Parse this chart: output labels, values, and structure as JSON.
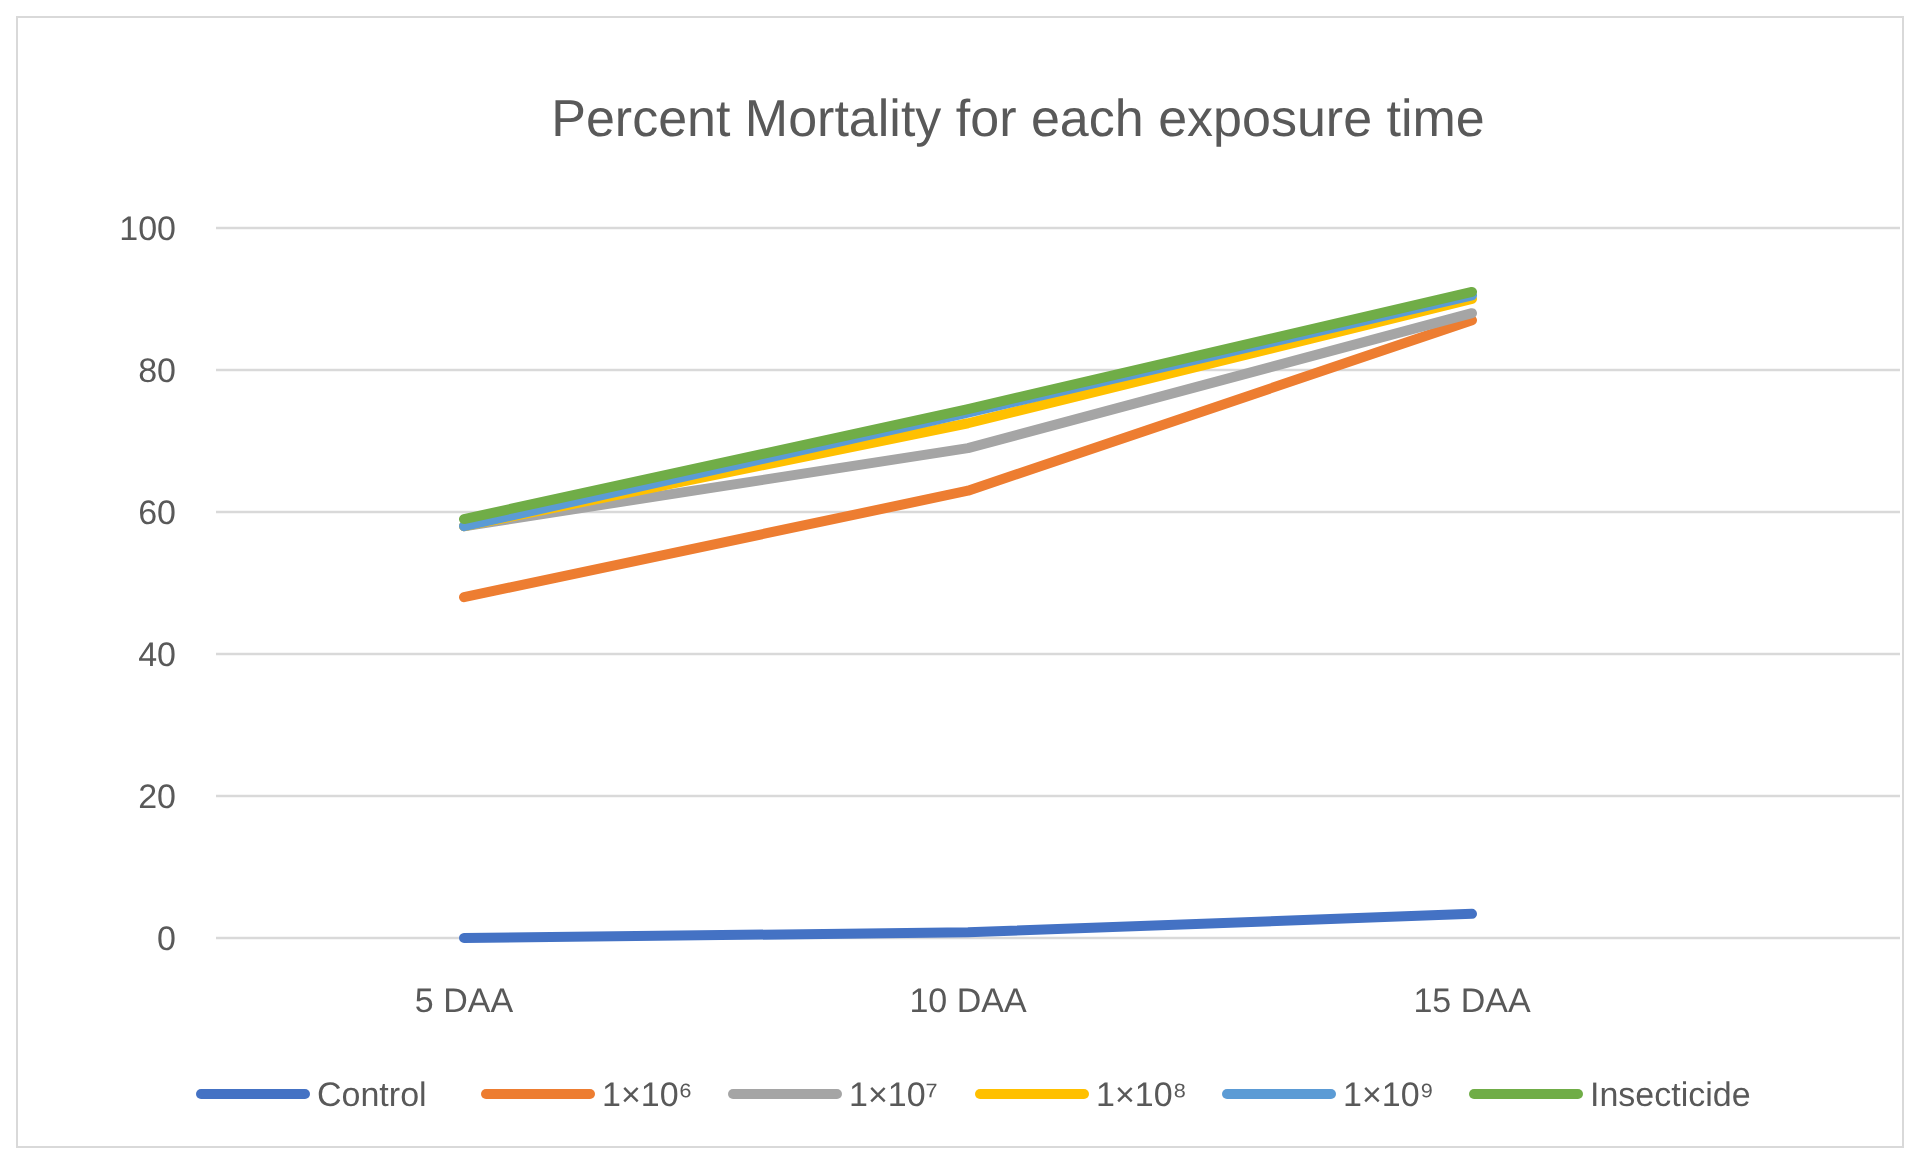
{
  "chart_data": {
    "type": "line",
    "title": "Percent Mortality for each exposure time",
    "categories": [
      "5 DAA",
      "10 DAA",
      "15 DAA"
    ],
    "series": [
      {
        "name": "Control",
        "color": "#4472c4",
        "values": [
          0,
          0.8,
          3.4
        ]
      },
      {
        "name": "1×10⁶",
        "color": "#ed7d31",
        "values": [
          48,
          63,
          87
        ]
      },
      {
        "name": "1×10⁷",
        "color": "#a5a5a5",
        "values": [
          58,
          69,
          88
        ]
      },
      {
        "name": "1×10⁸",
        "color": "#ffc000",
        "values": [
          58,
          72.5,
          90
        ]
      },
      {
        "name": "1×10⁹",
        "color": "#5b9bd5",
        "values": [
          58,
          74,
          90.5
        ]
      },
      {
        "name": "Insecticide",
        "color": "#70ad47",
        "values": [
          59,
          74.5,
          91
        ]
      }
    ],
    "ylim": [
      0,
      100
    ],
    "yticks": [
      0,
      20,
      40,
      60,
      80,
      100
    ],
    "grid": "y",
    "legend": "bottom",
    "marker": "none",
    "line_style": "solid"
  }
}
